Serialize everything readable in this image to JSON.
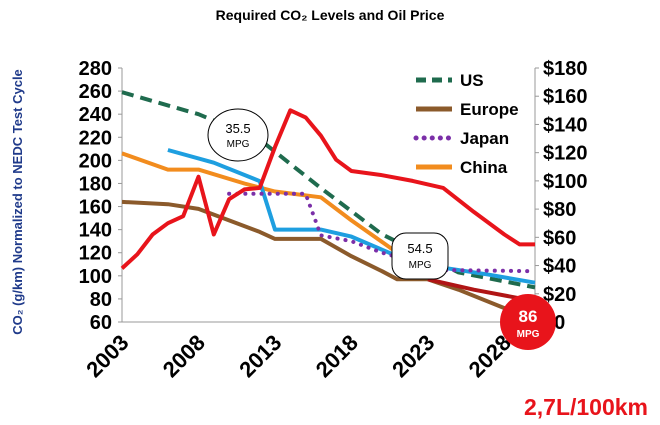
{
  "chart_data": {
    "type": "line",
    "title": "Required CO₂  Levels and Oil Price",
    "ylabel_left": "CO₂ (g/km) Normalized to NEDC Test Cycle",
    "ylim_left": [
      60,
      280
    ],
    "yticks_left": [
      "280",
      "260",
      "240",
      "220",
      "200",
      "180",
      "160",
      "140",
      "120",
      "100",
      "80",
      "60"
    ],
    "yticks_left_values": [
      280,
      260,
      240,
      220,
      200,
      180,
      160,
      140,
      120,
      100,
      80,
      60
    ],
    "ylim_right": [
      0,
      180
    ],
    "yticks_right": [
      "$180",
      "$160",
      "$140",
      "$120",
      "$100",
      "$80",
      "$60",
      "$40",
      "$20",
      "$0"
    ],
    "yticks_right_values": [
      180,
      160,
      140,
      120,
      100,
      80,
      60,
      40,
      20,
      0
    ],
    "xlim": [
      2003,
      2030
    ],
    "xticks": [
      "2003",
      "2008",
      "2013",
      "2018",
      "2023",
      "2028"
    ],
    "xticks_values": [
      2003,
      2008,
      2013,
      2018,
      2023,
      2028
    ],
    "legend_position": "top-right",
    "series": [
      {
        "name": "US",
        "axis": "left",
        "color": "#1f6b4e",
        "style": "dashed",
        "x": [
          2003,
          2008,
          2012,
          2016,
          2020,
          2025,
          2030
        ],
        "y": [
          259,
          240,
          218,
          176,
          136,
          103,
          90
        ]
      },
      {
        "name": "Europe",
        "axis": "left",
        "color": "#8b5a2b",
        "style": "solid",
        "x": [
          2003,
          2006,
          2008,
          2010,
          2012,
          2013,
          2016,
          2018,
          2020,
          2021,
          2023,
          2025,
          2028,
          2030
        ],
        "y": [
          164,
          162,
          158,
          148,
          138,
          132,
          132,
          117,
          104,
          97,
          97,
          88,
          72,
          65
        ]
      },
      {
        "name": "Japan",
        "axis": "left",
        "color": "#7b2fa8",
        "style": "dotted",
        "x": [
          2010,
          2015,
          2016,
          2018,
          2020,
          2024,
          2030
        ],
        "y": [
          171,
          171,
          135,
          130,
          120,
          105,
          104
        ]
      },
      {
        "name": "China",
        "axis": "left",
        "color": "#f28c1e",
        "style": "solid",
        "x": [
          2003,
          2006,
          2008,
          2011,
          2013,
          2016,
          2018,
          2021
        ],
        "y": [
          206,
          192,
          192,
          180,
          173,
          168,
          148,
          120
        ]
      },
      {
        "name": "",
        "axis": "left",
        "color": "#1e9fe0",
        "style": "solid",
        "x": [
          2006,
          2009,
          2012,
          2013,
          2016,
          2018,
          2021,
          2024,
          2027,
          2030
        ],
        "y": [
          209,
          198,
          182,
          140,
          140,
          134,
          117,
          107,
          101,
          94
        ]
      },
      {
        "name": "",
        "axis": "right",
        "color": "#e8141b",
        "style": "solid",
        "x": [
          2003,
          2004,
          2005,
          2006,
          2007,
          2008,
          2009,
          2010,
          2011,
          2012,
          2013,
          2014,
          2015,
          2016,
          2017,
          2018,
          2020,
          2022,
          2024,
          2026,
          2028,
          2029,
          2030
        ],
        "y": [
          38,
          48,
          62,
          70,
          75,
          103,
          62,
          87,
          94,
          95,
          124,
          150,
          145,
          132,
          115,
          107,
          104,
          100,
          95,
          78,
          62,
          55,
          55
        ]
      },
      {
        "name": "",
        "axis": "left",
        "color": "#b01515",
        "style": "solid",
        "x": [
          2023,
          2026,
          2030
        ],
        "y": [
          97,
          88,
          78
        ]
      }
    ],
    "annotations": [
      {
        "text": "35.5",
        "sub": "MPG",
        "type": "circle-callout"
      },
      {
        "text": "54.5",
        "sub": "MPG",
        "type": "box-callout"
      },
      {
        "text": "86",
        "sub": "MPG",
        "type": "red-badge"
      }
    ],
    "note": "2,7L/100km"
  }
}
